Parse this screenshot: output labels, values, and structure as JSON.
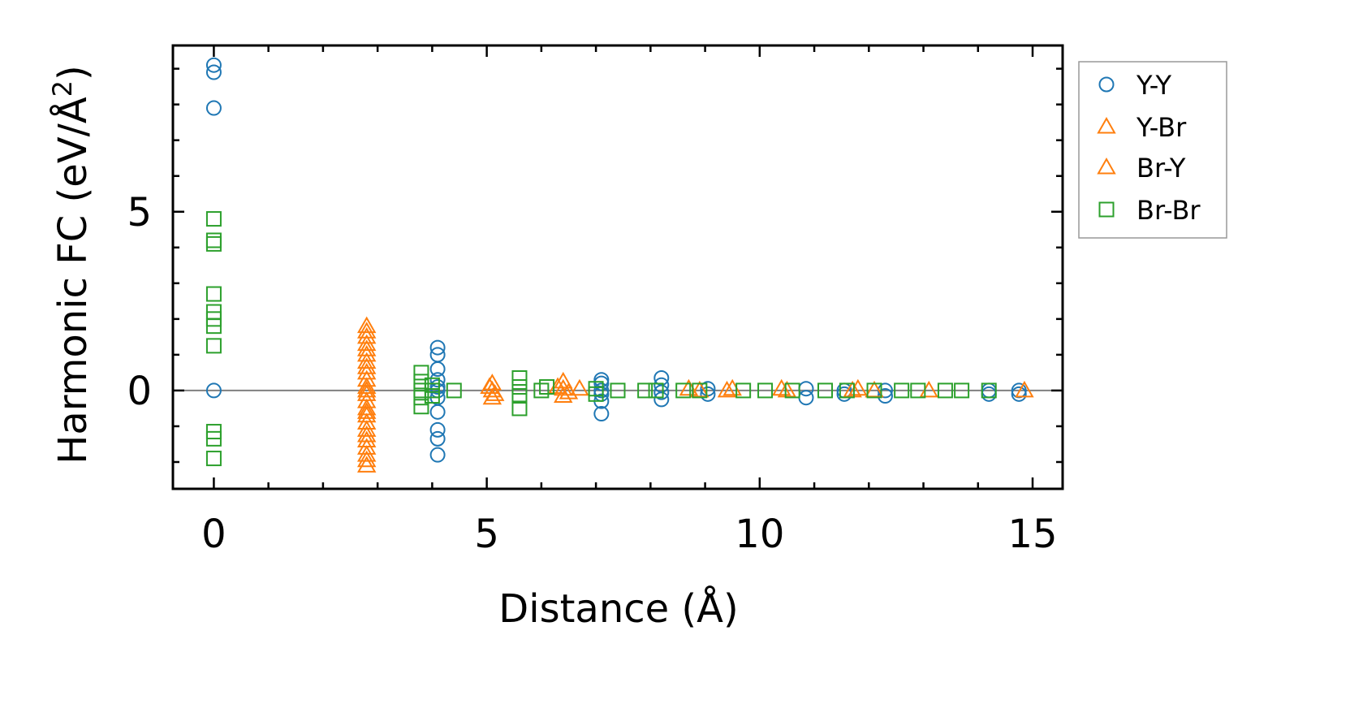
{
  "chart_data": {
    "type": "scatter",
    "title": "",
    "xlabel": "Distance (Å)",
    "ylabel": "Harmonic FC (eV/Å",
    "ylabel_sup": "2",
    "ylabel_close": ")",
    "xlim": [
      -0.75,
      15.55
    ],
    "ylim": [
      -2.75,
      9.65
    ],
    "xticks": [
      0,
      5,
      10,
      15
    ],
    "xtick_labels": [
      "0",
      "5",
      "10",
      "15"
    ],
    "yticks": [
      0,
      5
    ],
    "ytick_labels": [
      "0",
      "5"
    ],
    "x_minor_step": 1,
    "y_minor_step": 1,
    "zero_line": true,
    "legend_position": "outside-top-right",
    "series": [
      {
        "name": "Y-Y",
        "marker": "circle",
        "color": "#1f77b4",
        "points": [
          [
            0,
            9.1
          ],
          [
            0,
            8.9
          ],
          [
            0,
            7.9
          ],
          [
            0,
            0.0
          ],
          [
            4.1,
            1.2
          ],
          [
            4.1,
            1.0
          ],
          [
            4.1,
            0.6
          ],
          [
            4.1,
            0.3
          ],
          [
            4.1,
            0.1
          ],
          [
            4.1,
            0.0
          ],
          [
            4.1,
            -0.2
          ],
          [
            4.1,
            -0.6
          ],
          [
            4.1,
            -1.1
          ],
          [
            4.1,
            -1.35
          ],
          [
            4.1,
            -1.8
          ],
          [
            7.1,
            0.3
          ],
          [
            7.1,
            0.2
          ],
          [
            7.1,
            0.0
          ],
          [
            7.1,
            -0.1
          ],
          [
            7.1,
            -0.3
          ],
          [
            7.1,
            -0.65
          ],
          [
            8.2,
            0.35
          ],
          [
            8.2,
            0.15
          ],
          [
            8.2,
            -0.05
          ],
          [
            8.2,
            -0.25
          ],
          [
            9.05,
            0.05
          ],
          [
            9.05,
            -0.1
          ],
          [
            10.85,
            0.05
          ],
          [
            10.85,
            -0.2
          ],
          [
            11.55,
            0.0
          ],
          [
            11.55,
            -0.1
          ],
          [
            12.3,
            0.0
          ],
          [
            12.3,
            -0.15
          ],
          [
            14.2,
            0.0
          ],
          [
            14.2,
            -0.1
          ],
          [
            14.75,
            0.0
          ],
          [
            14.75,
            -0.1
          ]
        ]
      },
      {
        "name": "Y-Br",
        "marker": "triangle",
        "color": "#ff7f0e",
        "points": [
          [
            2.8,
            1.8
          ],
          [
            2.8,
            1.5
          ],
          [
            2.8,
            1.3
          ],
          [
            2.8,
            1.0
          ],
          [
            2.8,
            0.8
          ],
          [
            2.8,
            0.5
          ],
          [
            2.8,
            0.3
          ],
          [
            2.8,
            0.1
          ],
          [
            2.8,
            -0.1
          ],
          [
            2.8,
            -0.3
          ],
          [
            2.8,
            -0.5
          ],
          [
            2.8,
            -0.7
          ],
          [
            2.8,
            -0.9
          ],
          [
            2.8,
            -1.1
          ],
          [
            2.8,
            -1.4
          ],
          [
            2.8,
            -1.6
          ],
          [
            2.8,
            -1.8
          ],
          [
            2.8,
            -2.1
          ],
          [
            5.1,
            0.2
          ],
          [
            5.1,
            0.0
          ],
          [
            5.1,
            -0.2
          ],
          [
            6.4,
            0.25
          ],
          [
            6.4,
            0.05
          ],
          [
            6.4,
            -0.15
          ],
          [
            8.7,
            0.05
          ],
          [
            9.5,
            0.05
          ],
          [
            10.4,
            0.05
          ],
          [
            11.8,
            0.05
          ],
          [
            13.1,
            0.0
          ],
          [
            14.85,
            0.0
          ]
        ]
      },
      {
        "name": "Br-Y",
        "marker": "triangle",
        "color": "#ff7f0e",
        "points": [
          [
            2.8,
            1.65
          ],
          [
            2.8,
            1.15
          ],
          [
            2.8,
            0.65
          ],
          [
            2.8,
            0.0
          ],
          [
            2.8,
            -0.6
          ],
          [
            2.8,
            -1.25
          ],
          [
            2.8,
            -1.95
          ],
          [
            5.05,
            0.1
          ],
          [
            5.15,
            -0.1
          ],
          [
            6.3,
            0.1
          ],
          [
            6.5,
            -0.05
          ],
          [
            6.7,
            0.05
          ],
          [
            8.9,
            0.0
          ],
          [
            9.4,
            0.0
          ],
          [
            10.5,
            0.0
          ],
          [
            11.7,
            0.0
          ],
          [
            12.1,
            0.0
          ]
        ]
      },
      {
        "name": "Br-Br",
        "marker": "square",
        "color": "#2ca02c",
        "points": [
          [
            0,
            4.8
          ],
          [
            0,
            4.2
          ],
          [
            0,
            4.1
          ],
          [
            0,
            2.7
          ],
          [
            0,
            2.2
          ],
          [
            0,
            2.0
          ],
          [
            0,
            1.8
          ],
          [
            0,
            1.25
          ],
          [
            0,
            -1.15
          ],
          [
            0,
            -1.35
          ],
          [
            0,
            -1.9
          ],
          [
            3.8,
            0.5
          ],
          [
            3.8,
            0.25
          ],
          [
            3.8,
            0.0
          ],
          [
            3.8,
            -0.2
          ],
          [
            3.8,
            -0.45
          ],
          [
            4.0,
            0.15
          ],
          [
            4.0,
            0.0
          ],
          [
            4.0,
            -0.15
          ],
          [
            4.4,
            0.0
          ],
          [
            5.6,
            0.35
          ],
          [
            5.6,
            0.1
          ],
          [
            5.6,
            -0.15
          ],
          [
            5.6,
            -0.5
          ],
          [
            6.0,
            0.0
          ],
          [
            6.1,
            0.1
          ],
          [
            7.0,
            0.05
          ],
          [
            7.0,
            -0.1
          ],
          [
            7.4,
            0.0
          ],
          [
            7.9,
            0.0
          ],
          [
            8.1,
            0.0
          ],
          [
            8.6,
            0.0
          ],
          [
            8.9,
            0.0
          ],
          [
            9.7,
            0.0
          ],
          [
            10.1,
            0.0
          ],
          [
            10.6,
            0.0
          ],
          [
            11.2,
            0.0
          ],
          [
            11.6,
            0.0
          ],
          [
            12.1,
            0.0
          ],
          [
            12.6,
            0.0
          ],
          [
            12.9,
            0.0
          ],
          [
            13.4,
            0.0
          ],
          [
            13.7,
            0.0
          ],
          [
            14.2,
            0.0
          ]
        ]
      }
    ]
  }
}
